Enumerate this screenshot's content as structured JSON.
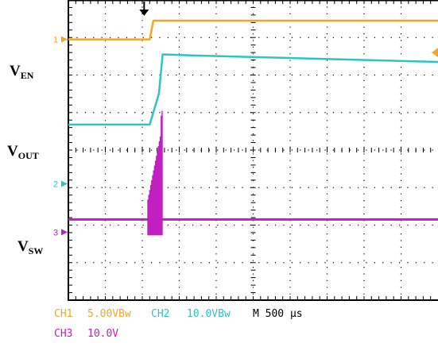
{
  "labels": {
    "ven": {
      "main": "V",
      "sub": "EN"
    },
    "vout": {
      "main": "V",
      "sub": "OUT"
    },
    "vsw": {
      "main": "V",
      "sub": "SW"
    }
  },
  "markers": {
    "ch1": "1",
    "ch2": "2",
    "ch3": "3"
  },
  "status": {
    "ch1_label": "CH1",
    "ch1_value": "5.00VBw",
    "ch2_label": "CH2",
    "ch2_value": "10.0VBw",
    "timebase": "M 500 µs",
    "ch3_label": "CH3",
    "ch3_value": "10.0V"
  },
  "colors": {
    "ch1": "#f5a623",
    "ch2": "#2ec4c4",
    "ch3": "#c020c0",
    "grid": "#000000",
    "trigger": "#f5a623"
  },
  "chart_data": {
    "type": "line",
    "grid": true,
    "x_divisions": 10,
    "y_divisions": 8,
    "series": [
      {
        "name": "V_EN",
        "x": [
          0,
          2.2,
          2.3,
          10
        ],
        "y": [
          6.95,
          6.95,
          7.45,
          7.45
        ]
      },
      {
        "name": "V_OUT",
        "x": [
          0,
          2.2,
          2.45,
          2.55,
          3.4,
          10
        ],
        "y": [
          4.68,
          4.68,
          5.5,
          6.55,
          6.52,
          6.35
        ]
      },
      {
        "name": "V_SW",
        "x": [
          0,
          10
        ],
        "y": [
          2.15,
          2.15
        ]
      }
    ]
  }
}
